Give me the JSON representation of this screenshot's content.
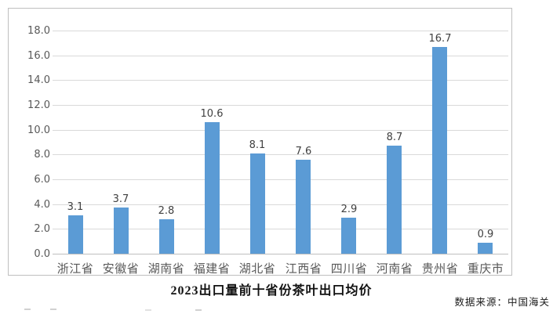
{
  "chart_data": {
    "type": "bar",
    "title": "2023出口量前十省份茶叶出口均价",
    "source": "数据来源：中国海关",
    "categories": [
      "浙江省",
      "安徽省",
      "湖南省",
      "福建省",
      "湖北省",
      "江西省",
      "四川省",
      "河南省",
      "贵州省",
      "重庆市"
    ],
    "values": [
      3.1,
      3.7,
      2.8,
      10.6,
      8.1,
      7.6,
      2.9,
      8.7,
      16.7,
      0.9
    ],
    "data_labels": [
      "3.1",
      "3.7",
      "2.8",
      "10.6",
      "8.1",
      "7.6",
      "2.9",
      "8.7",
      "16.7",
      "0.9"
    ],
    "xlabel": "",
    "ylabel": "",
    "ylim": [
      0,
      18
    ],
    "ytick_step": 2,
    "ytick_labels": [
      "0.0",
      "2.0",
      "4.0",
      "6.0",
      "8.0",
      "10.0",
      "12.0",
      "14.0",
      "16.0",
      "18.0"
    ],
    "grid": true,
    "legend_position": "none",
    "colors": {
      "bar": "#5b9bd5",
      "gridline": "#d9d9d9",
      "axis_line": "#bfbfbf",
      "tick_label": "#595959",
      "data_label": "#404040",
      "frame_border": "#bfbfbf",
      "title": "#111111"
    }
  }
}
